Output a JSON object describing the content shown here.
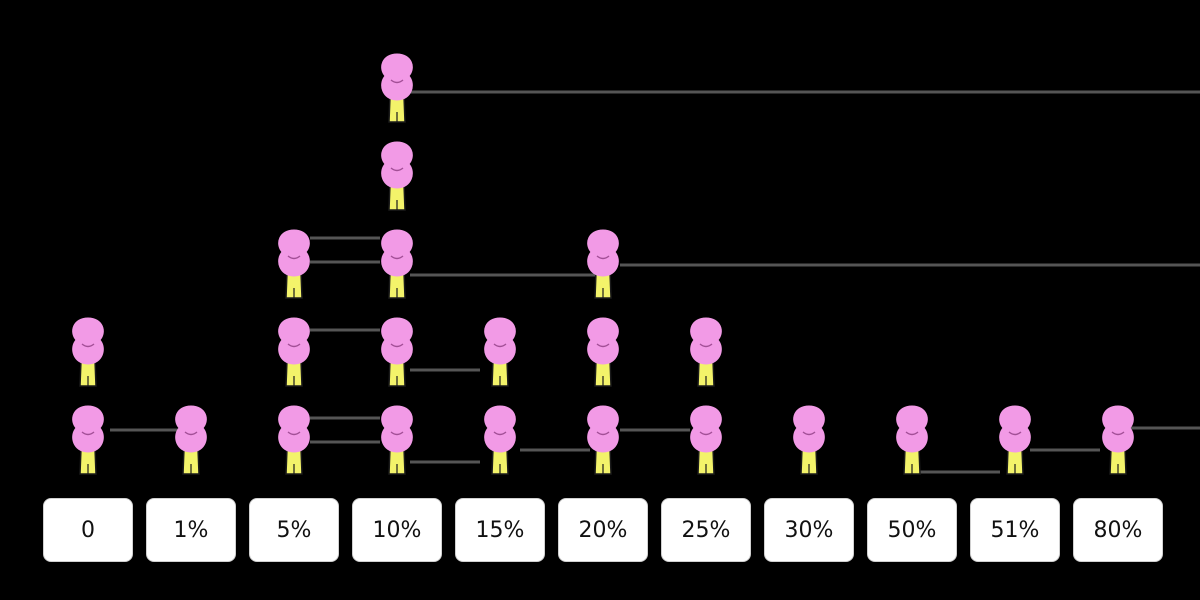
{
  "chart_data": {
    "type": "pictograph",
    "categories": [
      "0",
      "1%",
      "5%",
      "10%",
      "15%",
      "20%",
      "25%",
      "30%",
      "50%",
      "51%",
      "80%"
    ],
    "values": [
      2,
      1,
      3,
      5,
      2,
      3,
      2,
      1,
      1,
      1,
      1
    ],
    "icon": "person-icon",
    "colors": {
      "background": "#000000",
      "person_head": "#f29ae6",
      "person_body": "#f3f36a",
      "person_outline": "#1a1a1a",
      "label_box": "#ffffff",
      "label_text": "#111111"
    }
  }
}
